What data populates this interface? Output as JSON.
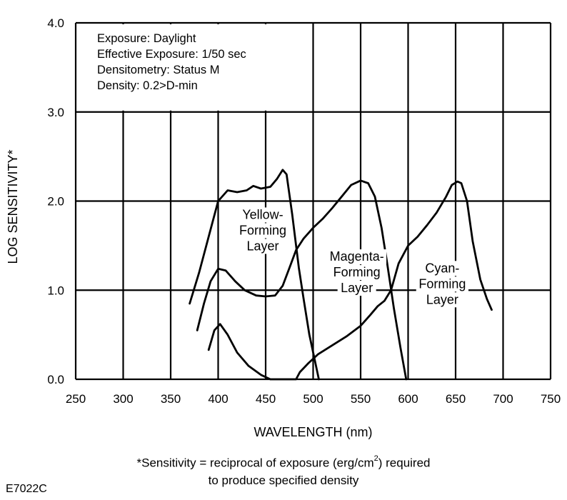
{
  "chart_data": {
    "type": "line",
    "xlabel": "WAVELENGTH (nm)",
    "ylabel": "LOG SENSITIVITY*",
    "xlim": [
      250,
      750
    ],
    "ylim": [
      0.0,
      4.0
    ],
    "x_ticks": [
      "250",
      "300",
      "350",
      "400",
      "450",
      "500",
      "550",
      "600",
      "650",
      "700",
      "750"
    ],
    "y_ticks": [
      "0.0",
      "1.0",
      "2.0",
      "3.0",
      "4.0"
    ],
    "grid": true,
    "info_box": [
      "Exposure: Daylight",
      "Effective Exposure: 1/50 sec",
      "Densitometry: Status M",
      "Density: 0.2>D-min"
    ],
    "series": [
      {
        "label_lines": [
          "Yellow-",
          "Forming",
          "Layer"
        ],
        "points": [
          [
            370,
            0.85
          ],
          [
            380,
            1.2
          ],
          [
            390,
            1.6
          ],
          [
            400,
            2.0
          ],
          [
            410,
            2.12
          ],
          [
            420,
            2.1
          ],
          [
            430,
            2.12
          ],
          [
            437,
            2.17
          ],
          [
            445,
            2.14
          ],
          [
            455,
            2.16
          ],
          [
            462,
            2.25
          ],
          [
            468,
            2.35
          ],
          [
            472,
            2.3
          ],
          [
            478,
            1.85
          ],
          [
            485,
            1.25
          ],
          [
            490,
            0.9
          ],
          [
            496,
            0.5
          ],
          [
            502,
            0.2
          ],
          [
            506,
            0.0
          ]
        ]
      },
      {
        "label_lines": [
          "Magenta-",
          "Forming",
          "Layer"
        ],
        "points": [
          [
            378,
            0.55
          ],
          [
            385,
            0.85
          ],
          [
            392,
            1.1
          ],
          [
            400,
            1.24
          ],
          [
            408,
            1.22
          ],
          [
            418,
            1.1
          ],
          [
            428,
            1.0
          ],
          [
            440,
            0.94
          ],
          [
            450,
            0.93
          ],
          [
            460,
            0.94
          ],
          [
            468,
            1.05
          ],
          [
            475,
            1.25
          ],
          [
            482,
            1.45
          ],
          [
            490,
            1.58
          ],
          [
            500,
            1.7
          ],
          [
            510,
            1.8
          ],
          [
            520,
            1.92
          ],
          [
            530,
            2.05
          ],
          [
            540,
            2.18
          ],
          [
            550,
            2.23
          ],
          [
            558,
            2.2
          ],
          [
            565,
            2.05
          ],
          [
            572,
            1.7
          ],
          [
            578,
            1.3
          ],
          [
            585,
            0.8
          ],
          [
            592,
            0.35
          ],
          [
            598,
            0.0
          ]
        ]
      },
      {
        "label_lines": [
          "Cyan-",
          "Forming",
          "Layer"
        ],
        "points": [
          [
            390,
            0.33
          ],
          [
            396,
            0.55
          ],
          [
            402,
            0.62
          ],
          [
            410,
            0.5
          ],
          [
            420,
            0.3
          ],
          [
            432,
            0.15
          ],
          [
            445,
            0.05
          ],
          [
            455,
            0.0
          ],
          [
            468,
            0.0
          ],
          [
            475,
            0.0
          ],
          [
            482,
            0.0
          ],
          [
            486,
            0.08
          ],
          [
            495,
            0.18
          ],
          [
            505,
            0.28
          ],
          [
            520,
            0.38
          ],
          [
            535,
            0.48
          ],
          [
            550,
            0.6
          ],
          [
            560,
            0.72
          ],
          [
            568,
            0.82
          ],
          [
            575,
            0.88
          ],
          [
            582,
            1.0
          ],
          [
            590,
            1.3
          ],
          [
            600,
            1.5
          ],
          [
            610,
            1.6
          ],
          [
            620,
            1.73
          ],
          [
            630,
            1.87
          ],
          [
            640,
            2.05
          ],
          [
            646,
            2.18
          ],
          [
            652,
            2.22
          ],
          [
            656,
            2.2
          ],
          [
            662,
            2.0
          ],
          [
            668,
            1.55
          ],
          [
            676,
            1.12
          ],
          [
            683,
            0.9
          ],
          [
            688,
            0.78
          ]
        ]
      }
    ]
  },
  "footnote": {
    "line1_before": "*Sensitivity = reciprocal of exposure (erg/cm",
    "line1_sup": "2",
    "line1_after": ") required",
    "line2": "to produce specified density"
  },
  "figure_code": "E7022C"
}
